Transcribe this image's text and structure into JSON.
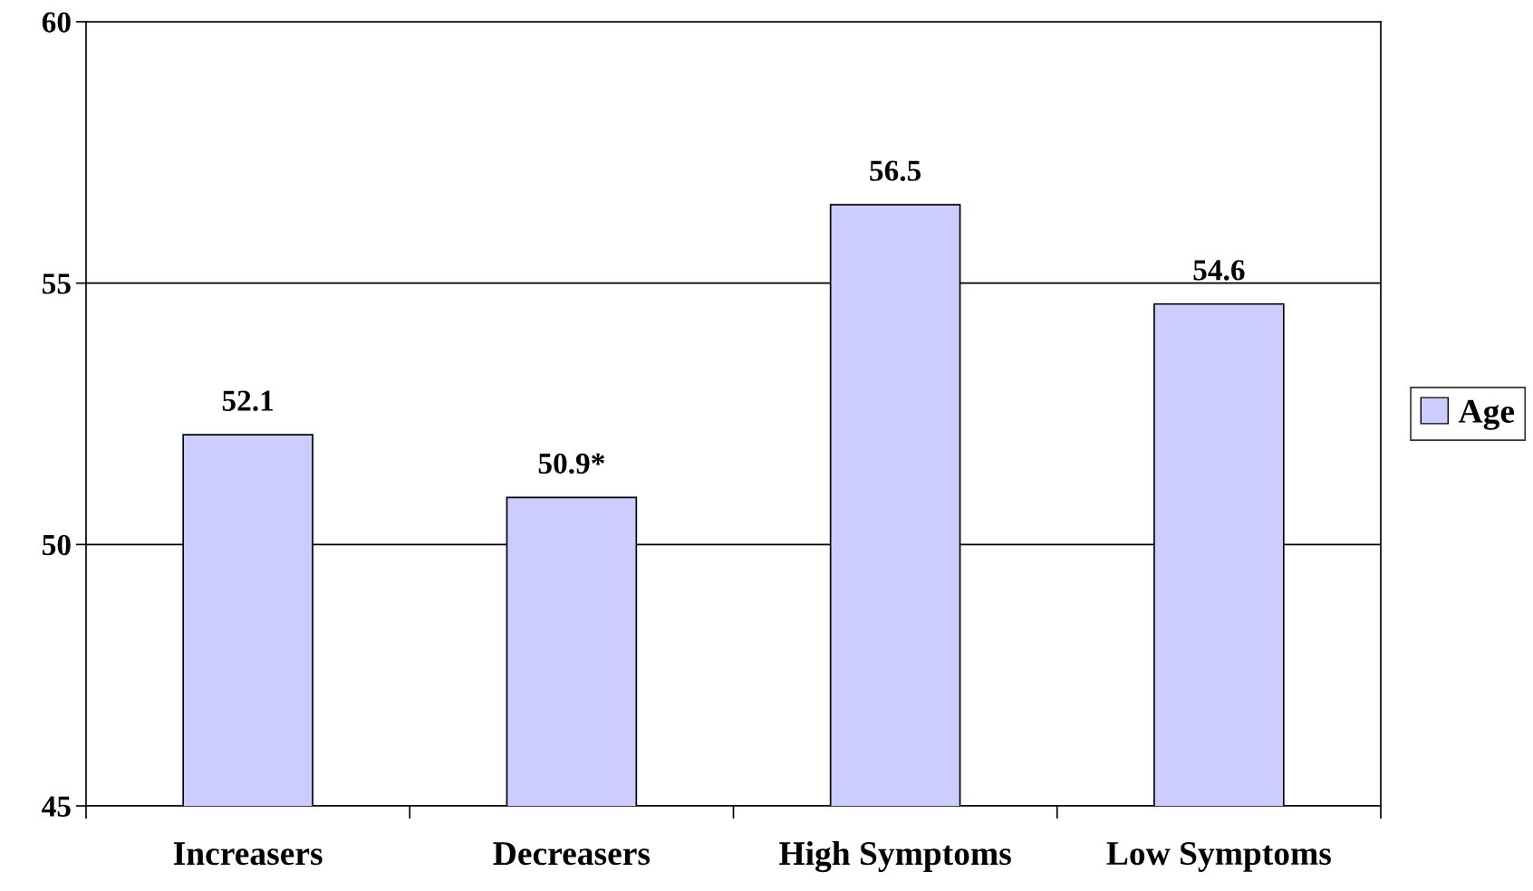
{
  "chart_data": {
    "type": "bar",
    "categories": [
      "Increasers",
      "Decreasers",
      "High Symptoms",
      "Low Symptoms"
    ],
    "series": [
      {
        "name": "Age",
        "color": "#ccccff",
        "values": [
          52.1,
          50.9,
          56.5,
          54.6
        ],
        "value_labels": [
          "52.1",
          "50.9*",
          "56.5",
          "54.6"
        ]
      }
    ],
    "ylim": [
      45,
      60
    ],
    "yticks": [
      45,
      50,
      55,
      60
    ],
    "grid": "y",
    "legend": "right"
  }
}
